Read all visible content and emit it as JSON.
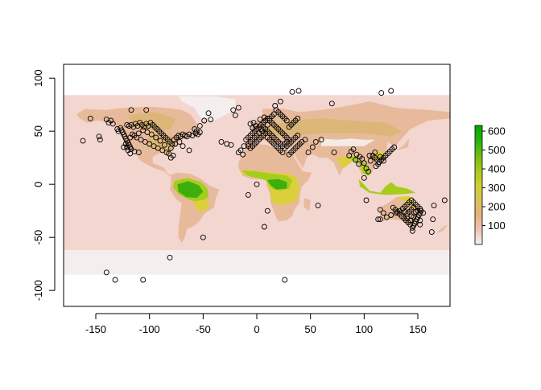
{
  "chart_data": {
    "type": "raster-map-with-points",
    "title": "",
    "xlabel": "",
    "ylabel": "",
    "xlim": [
      -180,
      180
    ],
    "ylim": [
      -115,
      113
    ],
    "x_ticks": [
      -150,
      -100,
      -50,
      0,
      50,
      100,
      150
    ],
    "y_ticks": [
      -100,
      -50,
      0,
      50,
      100
    ],
    "x_tick_labels": [
      "-150",
      "-100",
      "-50",
      "0",
      "50",
      "100",
      "150"
    ],
    "y_tick_labels": [
      "-100",
      "-50",
      "0",
      "50",
      "100"
    ],
    "raster_extent": {
      "xmin": -180,
      "xmax": 180,
      "ymin": -85,
      "ymax": 84
    },
    "legend": {
      "placement": "right",
      "range": [
        0,
        630
      ],
      "ticks": [
        100,
        200,
        300,
        400,
        500,
        600
      ],
      "tick_labels": [
        "100",
        "200",
        "300",
        "400",
        "500",
        "600"
      ],
      "colors": [
        "#f2f2f2",
        "#f0c4b4",
        "#e8b17a",
        "#d9c35a",
        "#cbd12e",
        "#a8c81a",
        "#6cbe10",
        "#26b30a",
        "#00a600"
      ]
    },
    "colors": {
      "ocean": "#f3d6cf",
      "land_low": "#e8ba9c",
      "land_mid": "#dcb678",
      "yellow": "#dccf3c",
      "green_light": "#a6cc1c",
      "green": "#3caf0e",
      "ice": "#f4efee",
      "point_stroke": "#000000"
    },
    "points": [
      [
        -155,
        62
      ],
      [
        -162,
        41
      ],
      [
        -147,
        45
      ],
      [
        -146,
        42
      ],
      [
        -130,
        52
      ],
      [
        -129,
        50
      ],
      [
        -127,
        53
      ],
      [
        -126,
        51
      ],
      [
        -125,
        49
      ],
      [
        -124,
        47
      ],
      [
        -123,
        45
      ],
      [
        -122,
        43
      ],
      [
        -121,
        41
      ],
      [
        -120,
        39
      ],
      [
        -119,
        37
      ],
      [
        -118,
        35
      ],
      [
        -121,
        56
      ],
      [
        -119,
        55
      ],
      [
        -117,
        56
      ],
      [
        -115,
        54
      ],
      [
        -113,
        57
      ],
      [
        -111,
        55
      ],
      [
        -109,
        58
      ],
      [
        -107,
        56
      ],
      [
        -105,
        54
      ],
      [
        -103,
        57
      ],
      [
        -101,
        55
      ],
      [
        -99,
        58
      ],
      [
        -97,
        56
      ],
      [
        -95,
        54
      ],
      [
        -93,
        52
      ],
      [
        -91,
        50
      ],
      [
        -89,
        48
      ],
      [
        -87,
        46
      ],
      [
        -85,
        44
      ],
      [
        -83,
        42
      ],
      [
        -81,
        40
      ],
      [
        -79,
        38
      ],
      [
        -77,
        42
      ],
      [
        -75,
        44
      ],
      [
        -73,
        46
      ],
      [
        -71,
        45
      ],
      [
        -69,
        47
      ],
      [
        -67,
        46
      ],
      [
        -65,
        45
      ],
      [
        -63,
        47
      ],
      [
        -60,
        46
      ],
      [
        -57,
        48
      ],
      [
        -55,
        47
      ],
      [
        -53,
        49
      ],
      [
        -116,
        47
      ],
      [
        -112,
        44
      ],
      [
        -108,
        42
      ],
      [
        -104,
        40
      ],
      [
        -100,
        38
      ],
      [
        -96,
        36
      ],
      [
        -92,
        34
      ],
      [
        -88,
        32
      ],
      [
        -84,
        30
      ],
      [
        -80,
        34
      ],
      [
        -86,
        37
      ],
      [
        -90,
        41
      ],
      [
        -94,
        44
      ],
      [
        -98,
        47
      ],
      [
        -102,
        49
      ],
      [
        -106,
        51
      ],
      [
        -110,
        48
      ],
      [
        -114,
        46
      ],
      [
        -118,
        44
      ],
      [
        -122,
        38
      ],
      [
        -124,
        35
      ],
      [
        -117,
        33
      ],
      [
        -114,
        31
      ],
      [
        -110,
        30
      ],
      [
        -78,
        27
      ],
      [
        -80,
        25
      ],
      [
        -82,
        29
      ],
      [
        -69,
        36
      ],
      [
        -72,
        40
      ],
      [
        -76,
        38
      ],
      [
        -63,
        32
      ],
      [
        -58,
        52
      ],
      [
        -56,
        50
      ],
      [
        -53,
        55
      ],
      [
        -49,
        60
      ],
      [
        -43,
        61
      ],
      [
        -45,
        67
      ],
      [
        -121,
        35
      ],
      [
        -118,
        29
      ],
      [
        -120,
        32
      ],
      [
        -103,
        70
      ],
      [
        -117,
        70
      ],
      [
        -106,
        -90
      ],
      [
        -132,
        -90
      ],
      [
        -140,
        -83
      ],
      [
        -81,
        -69
      ],
      [
        -50,
        -50
      ],
      [
        -138,
        58
      ],
      [
        -136,
        60
      ],
      [
        -134,
        57
      ],
      [
        -140,
        61
      ],
      [
        -33,
        40
      ],
      [
        -28,
        38
      ],
      [
        -24,
        37
      ],
      [
        -22,
        70
      ],
      [
        -17,
        72
      ],
      [
        -20,
        65
      ],
      [
        -17,
        30
      ],
      [
        -13,
        28
      ],
      [
        -15,
        32
      ],
      [
        -12,
        36
      ],
      [
        -8,
        38
      ],
      [
        -10,
        42
      ],
      [
        -8,
        44
      ],
      [
        -6,
        46
      ],
      [
        -4,
        48
      ],
      [
        -2,
        50
      ],
      [
        0,
        52
      ],
      [
        2,
        54
      ],
      [
        4,
        56
      ],
      [
        6,
        58
      ],
      [
        8,
        60
      ],
      [
        10,
        62
      ],
      [
        12,
        60
      ],
      [
        14,
        58
      ],
      [
        16,
        56
      ],
      [
        18,
        54
      ],
      [
        20,
        52
      ],
      [
        22,
        50
      ],
      [
        24,
        48
      ],
      [
        26,
        46
      ],
      [
        28,
        44
      ],
      [
        30,
        42
      ],
      [
        28,
        40
      ],
      [
        26,
        38
      ],
      [
        24,
        36
      ],
      [
        22,
        38
      ],
      [
        20,
        40
      ],
      [
        18,
        42
      ],
      [
        16,
        44
      ],
      [
        14,
        46
      ],
      [
        12,
        48
      ],
      [
        10,
        50
      ],
      [
        8,
        52
      ],
      [
        6,
        54
      ],
      [
        4,
        52
      ],
      [
        2,
        48
      ],
      [
        0,
        46
      ],
      [
        -2,
        44
      ],
      [
        -4,
        42
      ],
      [
        -6,
        40
      ],
      [
        -8,
        36
      ],
      [
        -6,
        34
      ],
      [
        -4,
        36
      ],
      [
        -2,
        38
      ],
      [
        0,
        40
      ],
      [
        2,
        42
      ],
      [
        4,
        44
      ],
      [
        6,
        46
      ],
      [
        8,
        48
      ],
      [
        10,
        44
      ],
      [
        12,
        42
      ],
      [
        14,
        40
      ],
      [
        16,
        38
      ],
      [
        18,
        36
      ],
      [
        20,
        34
      ],
      [
        22,
        32
      ],
      [
        24,
        30
      ],
      [
        26,
        34
      ],
      [
        28,
        36
      ],
      [
        30,
        38
      ],
      [
        32,
        40
      ],
      [
        34,
        42
      ],
      [
        36,
        44
      ],
      [
        38,
        46
      ],
      [
        30,
        54
      ],
      [
        32,
        56
      ],
      [
        34,
        58
      ],
      [
        36,
        60
      ],
      [
        38,
        62
      ],
      [
        28,
        60
      ],
      [
        26,
        62
      ],
      [
        24,
        64
      ],
      [
        22,
        66
      ],
      [
        20,
        68
      ],
      [
        18,
        70
      ],
      [
        16,
        66
      ],
      [
        14,
        64
      ],
      [
        12,
        62
      ],
      [
        10,
        56
      ],
      [
        5,
        50
      ],
      [
        -1,
        55
      ],
      [
        -4,
        53
      ],
      [
        -6,
        57
      ],
      [
        -3,
        58
      ],
      [
        3,
        61
      ],
      [
        7,
        63
      ],
      [
        17,
        74
      ],
      [
        22,
        78
      ],
      [
        33,
        87
      ],
      [
        39,
        88
      ],
      [
        26,
        -90
      ],
      [
        45,
        42
      ],
      [
        42,
        40
      ],
      [
        40,
        38
      ],
      [
        38,
        36
      ],
      [
        36,
        34
      ],
      [
        34,
        32
      ],
      [
        32,
        30
      ],
      [
        30,
        28
      ],
      [
        48,
        30
      ],
      [
        52,
        35
      ],
      [
        55,
        40
      ],
      [
        60,
        42
      ],
      [
        70,
        76
      ],
      [
        72,
        30
      ],
      [
        88,
        31
      ],
      [
        90,
        33
      ],
      [
        86,
        27
      ],
      [
        93,
        28
      ],
      [
        96,
        26
      ],
      [
        98,
        24
      ],
      [
        95,
        19
      ],
      [
        92,
        23
      ],
      [
        100,
        20
      ],
      [
        102,
        15
      ],
      [
        104,
        12
      ],
      [
        106,
        22
      ],
      [
        108,
        27
      ],
      [
        110,
        25
      ],
      [
        112,
        23
      ],
      [
        114,
        21
      ],
      [
        116,
        23
      ],
      [
        118,
        25
      ],
      [
        120,
        27
      ],
      [
        122,
        29
      ],
      [
        124,
        31
      ],
      [
        126,
        33
      ],
      [
        128,
        35
      ],
      [
        118,
        22
      ],
      [
        115,
        26
      ],
      [
        113,
        19
      ],
      [
        111,
        17
      ],
      [
        102,
        -15
      ],
      [
        100,
        6
      ],
      [
        105,
        27
      ],
      [
        110,
        30
      ],
      [
        116,
        86
      ],
      [
        125,
        88
      ],
      [
        -8,
        -10
      ],
      [
        0,
        0
      ],
      [
        7,
        -40
      ],
      [
        10,
        -25
      ],
      [
        57,
        -20
      ],
      [
        113,
        -33
      ],
      [
        118,
        -27
      ],
      [
        115,
        -24
      ],
      [
        121,
        -31
      ],
      [
        125,
        -29
      ],
      [
        130,
        -27
      ],
      [
        133,
        -25
      ],
      [
        136,
        -23
      ],
      [
        138,
        -21
      ],
      [
        140,
        -19
      ],
      [
        142,
        -17
      ],
      [
        144,
        -15
      ],
      [
        146,
        -17
      ],
      [
        148,
        -19
      ],
      [
        150,
        -21
      ],
      [
        152,
        -23
      ],
      [
        153,
        -25
      ],
      [
        152,
        -27
      ],
      [
        151,
        -29
      ],
      [
        150,
        -31
      ],
      [
        149,
        -33
      ],
      [
        148,
        -35
      ],
      [
        147,
        -37
      ],
      [
        146,
        -39
      ],
      [
        145,
        -41
      ],
      [
        143,
        -38
      ],
      [
        141,
        -36
      ],
      [
        139,
        -34
      ],
      [
        137,
        -32
      ],
      [
        135,
        -30
      ],
      [
        133,
        -28
      ],
      [
        131,
        -26
      ],
      [
        129,
        -24
      ],
      [
        127,
        -22
      ],
      [
        140,
        -28
      ],
      [
        142,
        -26
      ],
      [
        144,
        -24
      ],
      [
        146,
        -22
      ],
      [
        148,
        -26
      ],
      [
        144,
        -30
      ],
      [
        140,
        -32
      ],
      [
        138,
        -26
      ],
      [
        150,
        -25
      ],
      [
        152,
        -34
      ],
      [
        146,
        -31
      ],
      [
        143,
        -34
      ],
      [
        155,
        -27
      ],
      [
        145,
        -44
      ],
      [
        165,
        -20
      ],
      [
        164,
        -33
      ],
      [
        175,
        -15
      ],
      [
        163,
        -45
      ],
      [
        115,
        -33
      ],
      [
        152,
        -38
      ]
    ]
  }
}
